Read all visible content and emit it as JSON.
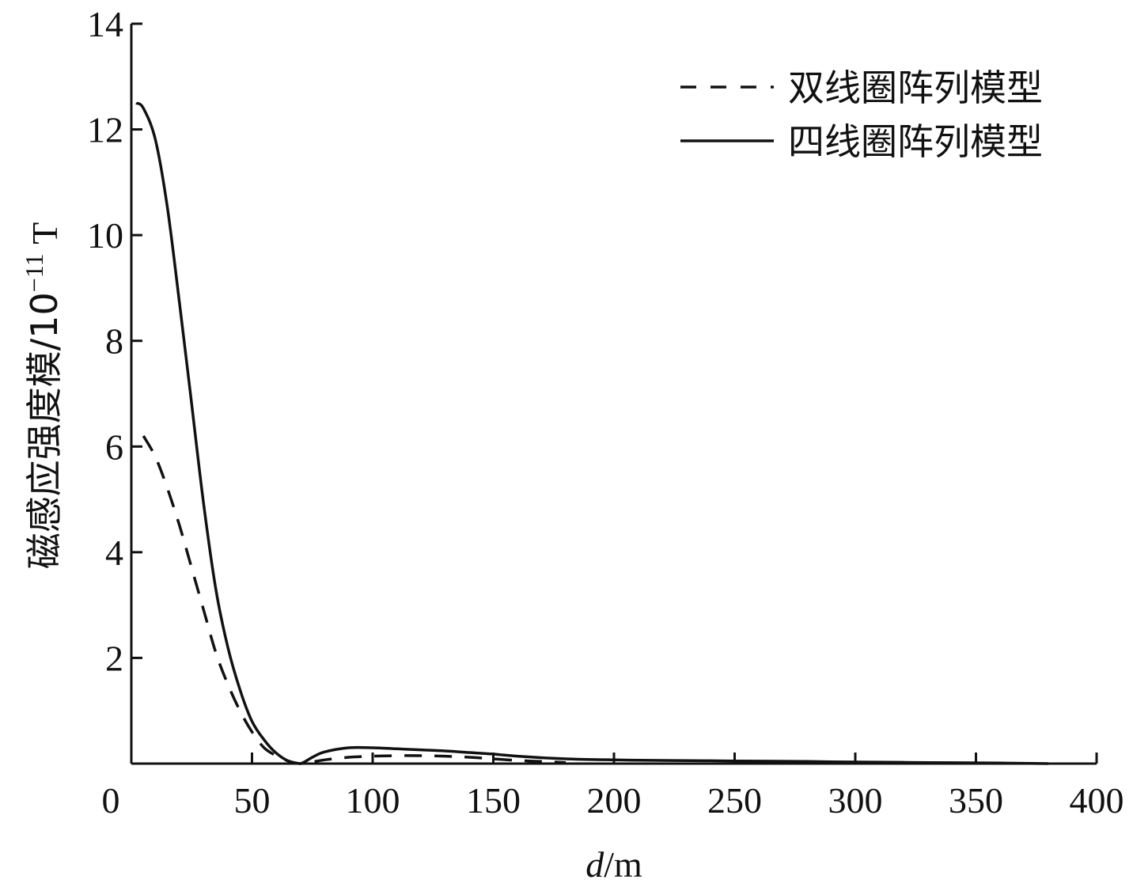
{
  "chart_data": {
    "type": "line",
    "title": "",
    "xlabel": {
      "var": "d",
      "unit": "/m"
    },
    "ylabel": {
      "text": "磁感应强度模/10",
      "exp": "−11",
      "unit": " T"
    },
    "xlim": [
      0,
      400
    ],
    "ylim": [
      0,
      14
    ],
    "xticks": [
      0,
      50,
      100,
      150,
      200,
      250,
      300,
      350,
      400
    ],
    "yticks": [
      2,
      4,
      6,
      8,
      10,
      12,
      14
    ],
    "ytick_labels": [
      "2",
      "4",
      "6",
      "8",
      "10",
      "12",
      "14"
    ],
    "xtick_labels": [
      "0",
      "50",
      "100",
      "150",
      "200",
      "250",
      "300",
      "350",
      "400"
    ],
    "grid": false,
    "legend_position": "top-right",
    "series": [
      {
        "name": "双线圈阵列模型",
        "style": "dashed",
        "color": "#111111",
        "x": [
          5,
          10,
          15,
          20,
          25,
          30,
          35,
          40,
          45,
          50,
          55,
          60,
          65,
          70,
          75,
          80,
          90,
          100,
          110,
          120,
          130,
          140,
          150,
          160,
          170,
          180
        ],
        "y": [
          6.2,
          5.8,
          5.2,
          4.5,
          3.7,
          2.9,
          2.1,
          1.5,
          1.0,
          0.6,
          0.3,
          0.15,
          0.05,
          0.0,
          0.03,
          0.07,
          0.12,
          0.14,
          0.15,
          0.15,
          0.14,
          0.12,
          0.09,
          0.06,
          0.04,
          0.02
        ]
      },
      {
        "name": "四线圈阵列模型",
        "style": "solid",
        "color": "#111111",
        "x": [
          2,
          5,
          10,
          15,
          20,
          25,
          30,
          35,
          40,
          45,
          50,
          55,
          60,
          65,
          70,
          75,
          80,
          90,
          100,
          110,
          120,
          130,
          140,
          150,
          160,
          180,
          200,
          220,
          250,
          280,
          300,
          330,
          360,
          380
        ],
        "y": [
          12.5,
          12.4,
          11.8,
          10.5,
          8.7,
          6.8,
          4.9,
          3.3,
          2.2,
          1.4,
          0.8,
          0.45,
          0.2,
          0.05,
          0.0,
          0.12,
          0.22,
          0.3,
          0.3,
          0.28,
          0.26,
          0.24,
          0.21,
          0.18,
          0.14,
          0.09,
          0.07,
          0.06,
          0.05,
          0.04,
          0.03,
          0.02,
          0.01,
          0.0
        ]
      }
    ]
  }
}
